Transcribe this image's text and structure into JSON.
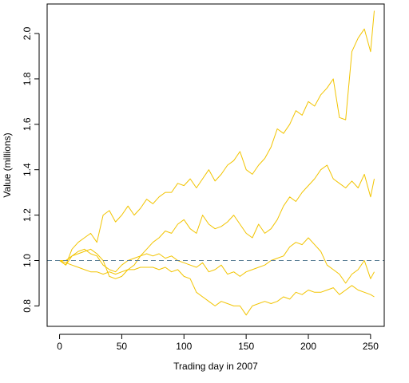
{
  "chart_data": {
    "type": "line",
    "xlabel": "Trading day in 2007",
    "ylabel": "Value (millions)",
    "xlim": [
      -10,
      261
    ],
    "ylim": [
      0.71,
      2.13
    ],
    "xticks": [
      0,
      50,
      100,
      150,
      200,
      250
    ],
    "yticks": [
      0.8,
      1.0,
      1.2,
      1.4,
      1.6,
      1.8,
      2.0
    ],
    "ytick_labels": [
      "0.8",
      "1.0",
      "1.2",
      "1.4",
      "1.6",
      "1.8",
      "2.0"
    ],
    "reference_line": {
      "y": 1.0,
      "style": "dashed",
      "color": "#5b7f95"
    },
    "line_color": "#f2c400",
    "grid": false,
    "series": [
      {
        "x": [
          0,
          5,
          10,
          15,
          20,
          25,
          30,
          35,
          40,
          45,
          50,
          55,
          60,
          65,
          70,
          75,
          80,
          85,
          90,
          95,
          100,
          105,
          110,
          115,
          120,
          125,
          130,
          135,
          140,
          145,
          150,
          155,
          160,
          165,
          170,
          175,
          180,
          185,
          190,
          195,
          200,
          205,
          210,
          215,
          220,
          225,
          230,
          235,
          240,
          245,
          250,
          253
        ],
        "values": [
          1.0,
          0.98,
          1.05,
          1.08,
          1.1,
          1.12,
          1.08,
          1.2,
          1.22,
          1.17,
          1.2,
          1.24,
          1.2,
          1.23,
          1.27,
          1.25,
          1.28,
          1.3,
          1.3,
          1.34,
          1.33,
          1.36,
          1.32,
          1.36,
          1.4,
          1.35,
          1.38,
          1.42,
          1.44,
          1.48,
          1.4,
          1.38,
          1.42,
          1.45,
          1.5,
          1.58,
          1.56,
          1.6,
          1.66,
          1.64,
          1.7,
          1.68,
          1.73,
          1.76,
          1.8,
          1.63,
          1.62,
          1.92,
          1.98,
          2.02,
          1.92,
          2.1
        ]
      },
      {
        "x": [
          0,
          5,
          10,
          15,
          20,
          25,
          30,
          35,
          40,
          45,
          50,
          55,
          60,
          65,
          70,
          75,
          80,
          85,
          90,
          95,
          100,
          105,
          110,
          115,
          120,
          125,
          130,
          135,
          140,
          145,
          150,
          155,
          160,
          165,
          170,
          175,
          180,
          185,
          190,
          195,
          200,
          205,
          210,
          215,
          220,
          225,
          230,
          235,
          240,
          245,
          250,
          253
        ],
        "values": [
          1.0,
          0.98,
          1.02,
          1.03,
          1.04,
          1.05,
          1.03,
          1.0,
          0.93,
          0.92,
          0.93,
          0.96,
          0.98,
          1.02,
          1.05,
          1.08,
          1.1,
          1.13,
          1.12,
          1.16,
          1.18,
          1.14,
          1.12,
          1.2,
          1.16,
          1.14,
          1.15,
          1.17,
          1.2,
          1.16,
          1.12,
          1.1,
          1.16,
          1.12,
          1.14,
          1.18,
          1.24,
          1.28,
          1.26,
          1.3,
          1.33,
          1.36,
          1.4,
          1.42,
          1.36,
          1.34,
          1.32,
          1.35,
          1.32,
          1.38,
          1.28,
          1.36
        ]
      },
      {
        "x": [
          0,
          5,
          10,
          15,
          20,
          25,
          30,
          35,
          40,
          45,
          50,
          55,
          60,
          65,
          70,
          75,
          80,
          85,
          90,
          95,
          100,
          105,
          110,
          115,
          120,
          125,
          130,
          135,
          140,
          145,
          150,
          155,
          160,
          165,
          170,
          175,
          180,
          185,
          190,
          195,
          200,
          205,
          210,
          215,
          220,
          225,
          230,
          235,
          240,
          245,
          250,
          253
        ],
        "values": [
          1.0,
          1.0,
          1.02,
          1.04,
          1.05,
          1.03,
          1.02,
          0.98,
          0.96,
          0.95,
          0.98,
          1.0,
          1.01,
          1.02,
          1.03,
          1.02,
          1.03,
          1.01,
          1.02,
          1.0,
          0.99,
          0.98,
          0.97,
          0.99,
          0.95,
          0.96,
          0.98,
          0.94,
          0.95,
          0.93,
          0.95,
          0.96,
          0.97,
          0.98,
          1.0,
          1.01,
          1.02,
          1.06,
          1.08,
          1.07,
          1.1,
          1.07,
          1.04,
          0.98,
          0.96,
          0.94,
          0.9,
          0.94,
          0.96,
          1.0,
          0.92,
          0.95
        ]
      },
      {
        "x": [
          0,
          5,
          10,
          15,
          20,
          25,
          30,
          35,
          40,
          45,
          50,
          55,
          60,
          65,
          70,
          75,
          80,
          85,
          90,
          95,
          100,
          105,
          110,
          115,
          120,
          125,
          130,
          135,
          140,
          145,
          150,
          155,
          160,
          165,
          170,
          175,
          180,
          185,
          190,
          195,
          200,
          205,
          210,
          215,
          220,
          225,
          230,
          235,
          240,
          245,
          250,
          253
        ],
        "values": [
          1.0,
          0.99,
          0.98,
          0.97,
          0.96,
          0.95,
          0.95,
          0.94,
          0.95,
          0.94,
          0.95,
          0.96,
          0.96,
          0.97,
          0.97,
          0.97,
          0.96,
          0.97,
          0.95,
          0.96,
          0.93,
          0.92,
          0.86,
          0.84,
          0.82,
          0.8,
          0.82,
          0.81,
          0.8,
          0.8,
          0.76,
          0.8,
          0.81,
          0.82,
          0.81,
          0.82,
          0.84,
          0.83,
          0.86,
          0.85,
          0.87,
          0.86,
          0.86,
          0.87,
          0.88,
          0.85,
          0.87,
          0.89,
          0.87,
          0.86,
          0.85,
          0.84
        ]
      }
    ]
  }
}
